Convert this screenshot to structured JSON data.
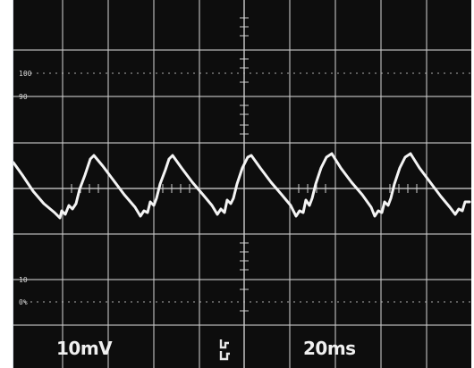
{
  "screen": {
    "percent_markers": [
      "100",
      "90",
      "10",
      "0%"
    ],
    "volts_per_div": "10mV",
    "time_per_div": "20ms"
  },
  "icons": {
    "trigger": "trigger-coupling-icon"
  },
  "colors": {
    "background": "#0d0d0d",
    "grid": "#c9c9c9",
    "trace": "#f4f4f4"
  }
}
